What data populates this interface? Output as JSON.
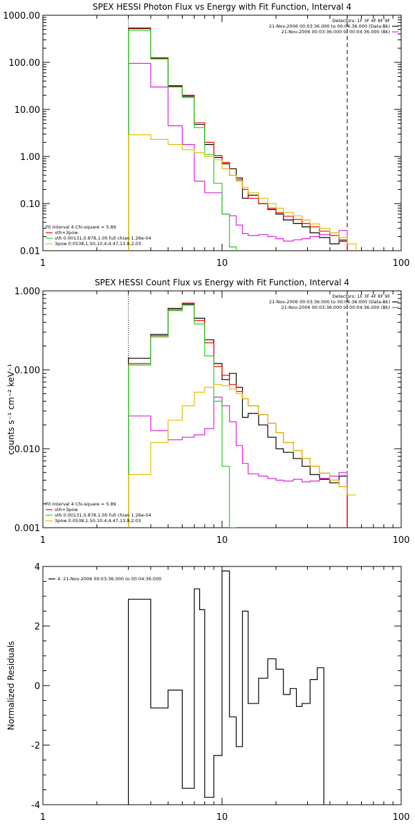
{
  "colors": {
    "data": "#000000",
    "bk": "#e020e0",
    "vth": "#20d020",
    "bpow": "#e0c000",
    "total": "#ff0000",
    "background": "#ffffff"
  },
  "chart_data": [
    {
      "type": "line",
      "title": "SPEX HESSI Photon Flux vs Energy with Fit Function, Interval 4",
      "xscale": "log",
      "yscale": "log",
      "xlim": [
        1,
        100
      ],
      "ylim": [
        0.01,
        1000
      ],
      "xticks": [
        1,
        10,
        100
      ],
      "xtick_labels": [
        "1",
        "10",
        "100"
      ],
      "yticks": [
        0.01,
        0.1,
        1,
        10,
        100,
        1000
      ],
      "ytick_labels": [
        "0.01",
        "0.10",
        "1.00",
        "10.00",
        "100.00",
        "1000.00"
      ],
      "legend_top": [
        "Detectors: 1F 3F 4F 8F 9F",
        "21-Nov-2006 00:03:36.000 to 00:04:36.000 (Data-Bk)",
        "21-Nov-2006 00:03:36.000 to 00:04:36.000 (Bk)"
      ],
      "legend_bottom": [
        "Fit Interval  4   Chi-square = 5.89",
        "vth+3pow",
        "vth 0.00131,0.878,1.00  full chian 1.26e-04",
        "3pow 0.0538,1.50,10.4,4.47,13.8,2.03"
      ],
      "vlines": [
        3,
        50
      ],
      "edges": [
        3,
        4,
        5,
        6,
        7,
        8,
        9,
        10,
        11,
        12,
        13,
        14,
        16,
        18,
        20,
        22,
        25,
        28,
        31,
        35,
        40,
        45,
        50
      ],
      "series": [
        {
          "name": "Data-Bk",
          "values": [
            520,
            120,
            31,
            19,
            4.8,
            1.8,
            0.95,
            0.7,
            0.55,
            0.35,
            0.13,
            0.15,
            0.1,
            0.075,
            0.06,
            0.045,
            0.038,
            0.032,
            0.024,
            0.019,
            0.014,
            0.016
          ]
        },
        {
          "name": "Bk",
          "values": [
            95,
            30,
            4.5,
            1.8,
            0.3,
            0.17,
            0.17,
            0.06,
            0.055,
            0.035,
            0.023,
            0.021,
            0.022,
            0.02,
            0.018,
            0.016,
            0.017,
            0.018,
            0.02,
            0.022,
            0.024,
            0.027
          ]
        },
        {
          "name": "vth+3pow",
          "values": [
            540,
            125,
            32,
            20,
            5.2,
            2,
            1.05,
            0.75,
            0.4,
            0.32,
            0.2,
            0.13,
            0.1,
            0.08,
            0.064,
            0.054,
            0.046,
            0.038,
            0.032,
            0.026,
            0.021,
            0.017
          ]
        },
        {
          "name": "vth",
          "values": [
            480,
            118,
            30,
            18,
            4.1,
            1.1,
            0.27,
            0.06,
            0.012
          ]
        },
        {
          "name": "3pow",
          "values": [
            2.9,
            2.3,
            1.8,
            1.4,
            1.2,
            1,
            0.85,
            0.55,
            0.4,
            0.3,
            0.22,
            0.17,
            0.13,
            0.1,
            0.08,
            0.065,
            0.055,
            0.045,
            0.037,
            0.03,
            0.024,
            0.019,
            0.014
          ]
        }
      ]
    },
    {
      "type": "line",
      "title": "SPEX HESSI Count Flux vs Energy with Fit Function, Interval 4",
      "ylabel": "counts s⁻¹ cm⁻² keV⁻¹",
      "xscale": "log",
      "yscale": "log",
      "xlim": [
        1,
        100
      ],
      "ylim": [
        0.001,
        1
      ],
      "xticks": [
        1,
        10,
        100
      ],
      "xtick_labels": [
        "1",
        "10",
        "100"
      ],
      "yticks": [
        0.001,
        0.01,
        0.1,
        1
      ],
      "ytick_labels": [
        "0.001",
        "0.010",
        "0.100",
        "1.000"
      ],
      "legend_top": [
        "Detectors: 1F 3F 4F 8F 9F",
        "21-Nov-2006 00:03:36.000 to 00:04:36.000 (Data-Bk)",
        "21-Nov-2006 00:03:36.000 to 00:04:36.000 (Bk)"
      ],
      "legend_bottom": [
        "Fit Interval  4   Chi-square = 5.89",
        "vth+3pow",
        "vth 0.00131,0.878,1.00  full chian 1.26e-04",
        "3pow 0.0538,1.50,10.4,4.47,13.8,2.03"
      ],
      "vlines": [
        3,
        50
      ],
      "edges": [
        3,
        4,
        5,
        6,
        7,
        8,
        9,
        10,
        11,
        12,
        13,
        14,
        16,
        18,
        20,
        22,
        25,
        28,
        31,
        35,
        40,
        45,
        50
      ],
      "series": [
        {
          "name": "Data-Bk",
          "values": [
            0.14,
            0.28,
            0.6,
            0.68,
            0.45,
            0.24,
            0.12,
            0.075,
            0.09,
            0.06,
            0.025,
            0.028,
            0.02,
            0.014,
            0.01,
            0.009,
            0.0075,
            0.006,
            0.0047,
            0.0041,
            0.0037,
            0.0045
          ]
        },
        {
          "name": "Bk",
          "values": [
            0.026,
            0.017,
            0.013,
            0.014,
            0.015,
            0.018,
            0.045,
            0.035,
            0.022,
            0.011,
            0.0065,
            0.0048,
            0.0045,
            0.0042,
            0.004,
            0.0039,
            0.0041,
            0.0038,
            0.0039,
            0.0042,
            0.0045,
            0.005
          ]
        },
        {
          "name": "vth+3pow",
          "values": [
            0.12,
            0.27,
            0.58,
            0.7,
            0.42,
            0.22,
            0.11,
            0.085,
            0.065,
            0.053,
            0.043,
            0.035,
            0.027,
            0.021,
            0.016,
            0.012,
            0.0095,
            0.0075,
            0.006,
            0.0049,
            0.004,
            0.0033
          ]
        },
        {
          "name": "vth",
          "values": [
            0.115,
            0.26,
            0.56,
            0.66,
            0.38,
            0.15,
            0.04,
            0.006,
            0.001
          ]
        },
        {
          "name": "3pow",
          "values": [
            0.0047,
            0.012,
            0.023,
            0.035,
            0.052,
            0.06,
            0.065,
            0.063,
            0.057,
            0.05,
            0.043,
            0.035,
            0.027,
            0.021,
            0.016,
            0.012,
            0.0095,
            0.0075,
            0.006,
            0.0049,
            0.004,
            0.0033,
            0.0026,
            0.0021,
            0.0016,
            0.0012
          ]
        }
      ]
    },
    {
      "type": "line",
      "ylabel": "Normalized Residuals",
      "xscale": "log",
      "yscale": "linear",
      "xlim": [
        1,
        100
      ],
      "ylim": [
        -4,
        4
      ],
      "xticks": [
        1,
        10,
        100
      ],
      "xtick_labels": [
        "1",
        "10",
        "100"
      ],
      "yticks": [
        -4,
        -2,
        0,
        2,
        4
      ],
      "ytick_labels": [
        "-4",
        "-2",
        "0",
        "2",
        "4"
      ],
      "legend": [
        "4. 21-Nov-2006 00:03:36.000 to 00:04:36.000"
      ],
      "edges": [
        3,
        4,
        5,
        6,
        7,
        7.5,
        8,
        9,
        10,
        11,
        12,
        13,
        14,
        15,
        16,
        18,
        20,
        22,
        24,
        26,
        28,
        31,
        34,
        37,
        40,
        45,
        50
      ],
      "series": [
        {
          "name": "residuals",
          "values": [
            2.9,
            -0.75,
            -0.15,
            -3.45,
            3.25,
            2.55,
            -3.75,
            -2.35,
            3.85,
            -1.05,
            -2.05,
            2.5,
            -0.6,
            -0.6,
            0.25,
            0.9,
            0.55,
            -0.3,
            -0.1,
            -0.7,
            -0.6,
            0.2,
            0.6
          ]
        }
      ]
    }
  ]
}
